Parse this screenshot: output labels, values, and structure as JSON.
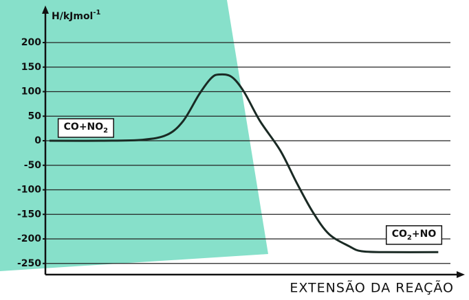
{
  "chart_data": {
    "type": "line",
    "y_label": {
      "text": "H/kJmol",
      "sup": "-1"
    },
    "x_label": "EXTENSÃO DA REAÇÃO",
    "x": [
      1,
      14,
      24,
      30,
      34,
      38,
      41,
      43,
      46,
      49,
      53,
      58,
      62,
      66,
      70,
      75,
      78,
      84,
      97
    ],
    "values": [
      0,
      0,
      2,
      12,
      40,
      95,
      128,
      135,
      130,
      100,
      40,
      -20,
      -85,
      -145,
      -190,
      -215,
      -225,
      -227,
      -227
    ],
    "color": "#1a2a24",
    "xlim": [
      0,
      100
    ],
    "ylim": [
      -272,
      265
    ],
    "yticks": [
      200,
      150,
      100,
      50,
      0,
      -50,
      -100,
      -150,
      -200,
      -250
    ],
    "grid": true,
    "annotations": [
      {
        "text": "CO+NO",
        "sub": "2",
        "x": 10,
        "y": 28
      },
      {
        "text": "CO",
        "sub": "2",
        "after": "+NO",
        "x": 91,
        "y": -190
      }
    ]
  }
}
